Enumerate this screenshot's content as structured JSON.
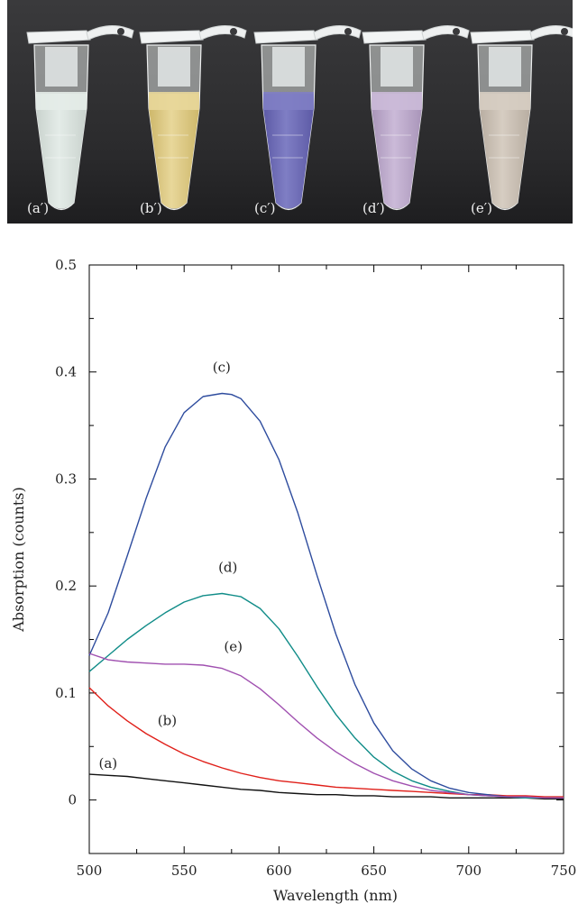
{
  "photo": {
    "tubes": [
      {
        "label": "(a′)",
        "liquid_color": "#e4ece8",
        "liquid_dark": "#c9d2cd"
      },
      {
        "label": "(b′)",
        "liquid_color": "#e8d79a",
        "liquid_dark": "#cdb76a"
      },
      {
        "label": "(c′)",
        "liquid_color": "#7f7ec4",
        "liquid_dark": "#5d5aa6"
      },
      {
        "label": "(d′)",
        "liquid_color": "#cbbad8",
        "liquid_dark": "#a995b9"
      },
      {
        "label": "(e′)",
        "liquid_color": "#d6cdc2",
        "liquid_dark": "#b8ada1"
      }
    ]
  },
  "chart_data": {
    "type": "line",
    "title": "",
    "xlabel": "Wavelength (nm)",
    "ylabel": "Absorption (counts)",
    "xlim": [
      500,
      750
    ],
    "ylim": [
      -0.05,
      0.5
    ],
    "xticks": [
      500,
      550,
      600,
      650,
      700,
      750
    ],
    "xtick_labels": [
      "500",
      "550",
      "600",
      "650",
      "700",
      "750"
    ],
    "yticks": [
      0,
      0.1,
      0.2,
      0.3,
      0.4,
      0.5
    ],
    "ytick_labels": [
      "0",
      "0.1",
      "0.2",
      "0.3",
      "0.4",
      "0.5"
    ],
    "grid": false,
    "series": [
      {
        "label": "(a)",
        "color": "#111111",
        "x": [
          500,
          510,
          520,
          530,
          540,
          550,
          560,
          570,
          580,
          590,
          600,
          610,
          620,
          630,
          640,
          650,
          660,
          670,
          680,
          690,
          700,
          710,
          720,
          730,
          740,
          750
        ],
        "y": [
          0.024,
          0.023,
          0.022,
          0.02,
          0.018,
          0.016,
          0.014,
          0.012,
          0.01,
          0.009,
          0.007,
          0.006,
          0.005,
          0.005,
          0.004,
          0.004,
          0.003,
          0.003,
          0.003,
          0.002,
          0.002,
          0.002,
          0.002,
          0.002,
          0.001,
          0.001
        ]
      },
      {
        "label": "(b)",
        "color": "#e0201a",
        "x": [
          500,
          510,
          520,
          530,
          540,
          550,
          560,
          570,
          580,
          590,
          600,
          610,
          620,
          630,
          640,
          650,
          660,
          670,
          680,
          690,
          700,
          710,
          720,
          730,
          740,
          750
        ],
        "y": [
          0.105,
          0.088,
          0.074,
          0.062,
          0.052,
          0.043,
          0.036,
          0.03,
          0.025,
          0.021,
          0.018,
          0.016,
          0.014,
          0.012,
          0.011,
          0.01,
          0.009,
          0.008,
          0.007,
          0.006,
          0.005,
          0.005,
          0.004,
          0.004,
          0.003,
          0.003
        ]
      },
      {
        "label": "(c)",
        "color": "#2e4c9e",
        "x": [
          500,
          510,
          520,
          530,
          540,
          550,
          560,
          570,
          575,
          580,
          590,
          600,
          610,
          620,
          630,
          640,
          650,
          660,
          670,
          680,
          690,
          700,
          710,
          720,
          730,
          740,
          750
        ],
        "y": [
          0.135,
          0.175,
          0.228,
          0.282,
          0.33,
          0.362,
          0.377,
          0.38,
          0.379,
          0.375,
          0.354,
          0.318,
          0.268,
          0.21,
          0.155,
          0.108,
          0.072,
          0.046,
          0.029,
          0.018,
          0.011,
          0.007,
          0.005,
          0.003,
          0.002,
          0.002,
          0.002
        ]
      },
      {
        "label": "(d)",
        "color": "#108c88",
        "x": [
          500,
          510,
          520,
          530,
          540,
          550,
          560,
          570,
          580,
          590,
          600,
          610,
          620,
          630,
          640,
          650,
          660,
          670,
          680,
          690,
          700,
          710,
          720,
          730,
          740,
          750
        ],
        "y": [
          0.12,
          0.135,
          0.15,
          0.163,
          0.175,
          0.185,
          0.191,
          0.193,
          0.19,
          0.179,
          0.16,
          0.134,
          0.106,
          0.08,
          0.058,
          0.04,
          0.027,
          0.018,
          0.012,
          0.008,
          0.005,
          0.004,
          0.003,
          0.002,
          0.002,
          0.002
        ]
      },
      {
        "label": "(e)",
        "color": "#a050b0",
        "x": [
          500,
          510,
          520,
          530,
          540,
          550,
          560,
          570,
          580,
          590,
          600,
          610,
          620,
          630,
          640,
          650,
          660,
          670,
          680,
          690,
          700,
          710,
          720,
          730,
          740,
          750
        ],
        "y": [
          0.137,
          0.131,
          0.129,
          0.128,
          0.127,
          0.127,
          0.126,
          0.123,
          0.116,
          0.104,
          0.089,
          0.073,
          0.058,
          0.045,
          0.034,
          0.025,
          0.018,
          0.013,
          0.009,
          0.007,
          0.005,
          0.004,
          0.003,
          0.003,
          0.002,
          0.002
        ]
      }
    ],
    "annotations": [
      {
        "text": "(a)",
        "x": 505,
        "y": 0.03
      },
      {
        "text": "(b)",
        "x": 536,
        "y": 0.07
      },
      {
        "text": "(c)",
        "x": 565,
        "y": 0.4
      },
      {
        "text": "(d)",
        "x": 568,
        "y": 0.213
      },
      {
        "text": "(e)",
        "x": 571,
        "y": 0.139
      }
    ]
  }
}
